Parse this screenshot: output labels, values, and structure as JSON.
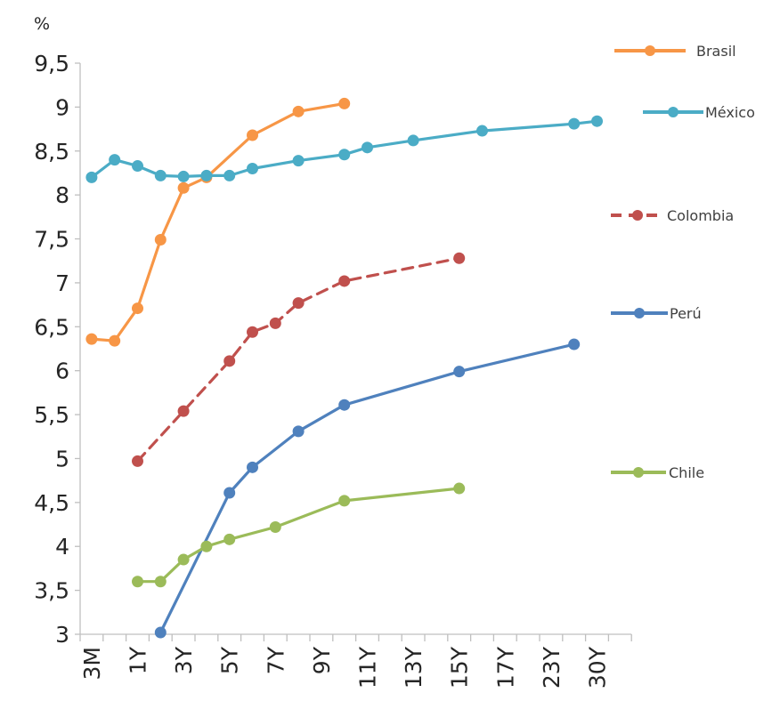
{
  "chart_data": {
    "type": "line",
    "ylabel": "%",
    "ylim": [
      3,
      9.5
    ],
    "y_ticks": [
      "3",
      "3,5",
      "4",
      "4,5",
      "5",
      "5,5",
      "6",
      "6,5",
      "7",
      "7,5",
      "8",
      "8,5",
      "9",
      "9,5"
    ],
    "x_tick_labels": [
      "3M",
      "1Y",
      "3Y",
      "5Y",
      "7Y",
      "9Y",
      "11Y",
      "13Y",
      "15Y",
      "17Y",
      "23Y",
      "30Y"
    ],
    "grid": false,
    "legend_placement": "right",
    "series": [
      {
        "name": "Brasil",
        "color": "#f79646",
        "dash": "solid",
        "points": [
          {
            "x": 0,
            "y": 6.36
          },
          {
            "x": 1,
            "y": 6.34
          },
          {
            "x": 2,
            "y": 6.71
          },
          {
            "x": 3,
            "y": 7.49
          },
          {
            "x": 4,
            "y": 8.08
          },
          {
            "x": 5,
            "y": 8.2
          },
          {
            "x": 7,
            "y": 8.68
          },
          {
            "x": 9,
            "y": 8.95
          },
          {
            "x": 11,
            "y": 9.04
          }
        ]
      },
      {
        "name": "México",
        "color": "#4bacc6",
        "dash": "solid",
        "points": [
          {
            "x": 0,
            "y": 8.2
          },
          {
            "x": 1,
            "y": 8.4
          },
          {
            "x": 2,
            "y": 8.33
          },
          {
            "x": 3,
            "y": 8.22
          },
          {
            "x": 4,
            "y": 8.21
          },
          {
            "x": 5,
            "y": 8.22
          },
          {
            "x": 6,
            "y": 8.22
          },
          {
            "x": 7,
            "y": 8.3
          },
          {
            "x": 9,
            "y": 8.39
          },
          {
            "x": 11,
            "y": 8.46
          },
          {
            "x": 12,
            "y": 8.54
          },
          {
            "x": 14,
            "y": 8.62
          },
          {
            "x": 17,
            "y": 8.73
          },
          {
            "x": 21,
            "y": 8.81
          },
          {
            "x": 22,
            "y": 8.84
          }
        ]
      },
      {
        "name": "Colombia",
        "color": "#c0504d",
        "dash": "dashed",
        "points": [
          {
            "x": 2,
            "y": 4.97
          },
          {
            "x": 4,
            "y": 5.54
          },
          {
            "x": 6,
            "y": 6.11
          },
          {
            "x": 7,
            "y": 6.44
          },
          {
            "x": 8,
            "y": 6.54
          },
          {
            "x": 9,
            "y": 6.77
          },
          {
            "x": 11,
            "y": 7.02
          },
          {
            "x": 16,
            "y": 7.28
          }
        ]
      },
      {
        "name": "Perú",
        "color": "#4f81bd",
        "dash": "solid",
        "points": [
          {
            "x": 3,
            "y": 3.02
          },
          {
            "x": 6,
            "y": 4.61
          },
          {
            "x": 7,
            "y": 4.9
          },
          {
            "x": 9,
            "y": 5.31
          },
          {
            "x": 11,
            "y": 5.61
          },
          {
            "x": 16,
            "y": 5.99
          },
          {
            "x": 21,
            "y": 6.3
          }
        ]
      },
      {
        "name": "Chile",
        "color": "#9bbb59",
        "dash": "solid",
        "points": [
          {
            "x": 2,
            "y": 3.6
          },
          {
            "x": 3,
            "y": 3.6
          },
          {
            "x": 4,
            "y": 3.85
          },
          {
            "x": 5,
            "y": 4.0
          },
          {
            "x": 6,
            "y": 4.08
          },
          {
            "x": 8,
            "y": 4.22
          },
          {
            "x": 11,
            "y": 4.52
          },
          {
            "x": 16,
            "y": 4.66
          }
        ]
      }
    ]
  }
}
